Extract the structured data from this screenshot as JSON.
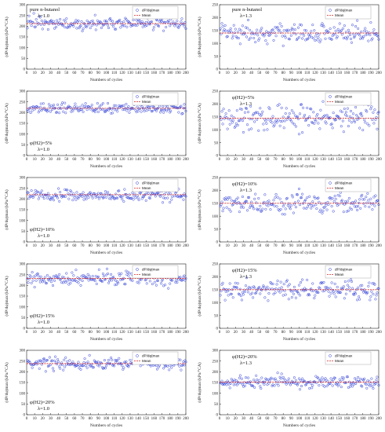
{
  "chart_data": [
    {
      "type": "scatter",
      "condition_lines": [
        "pure n-butanol",
        "λ=1.0"
      ],
      "xlabel": "Numbers of cycles",
      "ylabel": "(dP/dφ)max/(kPa/°CA)",
      "xlim": [
        0,
        200
      ],
      "ylim": [
        0,
        300
      ],
      "xticks": [
        0,
        10,
        20,
        30,
        40,
        50,
        60,
        70,
        80,
        90,
        100,
        110,
        120,
        130,
        140,
        150,
        160,
        170,
        180,
        190,
        200
      ],
      "yticks": [
        0,
        50,
        100,
        150,
        200,
        250,
        300
      ],
      "legend": [
        "dP/dφ|max",
        "Mean"
      ],
      "mean": 212,
      "spread": 22,
      "seed": 11
    },
    {
      "type": "scatter",
      "condition_lines": [
        "pure n-butanol",
        "λ=1.3"
      ],
      "xlabel": "Numbers of cycles",
      "ylabel": "(dP/dφ)max/(kPa/°CA)",
      "xlim": [
        0,
        200
      ],
      "ylim": [
        0,
        250
      ],
      "xticks": [
        0,
        10,
        20,
        30,
        40,
        50,
        60,
        70,
        80,
        90,
        100,
        110,
        120,
        130,
        140,
        150,
        160,
        170,
        180,
        190,
        200
      ],
      "yticks": [
        0,
        50,
        100,
        150,
        200,
        250
      ],
      "legend": [
        "dP/dφ|max",
        "Mean"
      ],
      "mean": 140,
      "spread": 28,
      "seed": 12
    },
    {
      "type": "scatter",
      "condition_lines": [
        "φ(H2)=5%",
        "λ=1.0"
      ],
      "xlabel": "Numbers of cycles",
      "ylabel": "(dP/dφ)max/(kPa/°CA)",
      "xlim": [
        0,
        200
      ],
      "ylim": [
        0,
        300
      ],
      "xticks": [
        0,
        10,
        20,
        30,
        40,
        50,
        60,
        70,
        80,
        90,
        100,
        110,
        120,
        130,
        140,
        150,
        160,
        170,
        180,
        190,
        200
      ],
      "yticks": [
        0,
        50,
        100,
        150,
        200,
        250,
        300
      ],
      "legend": [
        "dP/dφ|max",
        "Mean"
      ],
      "mean": 220,
      "spread": 18,
      "seed": 13
    },
    {
      "type": "scatter",
      "condition_lines": [
        "φ(H2)=5%",
        "λ=1.3"
      ],
      "xlabel": "Numbers of cycles",
      "ylabel": "(dP/dφ)max/(kPa/°CA)",
      "xlim": [
        0,
        200
      ],
      "ylim": [
        0,
        250
      ],
      "xticks": [
        0,
        10,
        20,
        30,
        40,
        50,
        60,
        70,
        80,
        90,
        100,
        110,
        120,
        130,
        140,
        150,
        160,
        170,
        180,
        190,
        200
      ],
      "yticks": [
        0,
        50,
        100,
        150,
        200,
        250
      ],
      "legend": [
        "dP/dφ|max",
        "Mean"
      ],
      "mean": 145,
      "spread": 35,
      "seed": 14
    },
    {
      "type": "scatter",
      "condition_lines": [
        "φ(H2)=10%",
        "λ=1.0"
      ],
      "xlabel": "Numbers of cycles",
      "ylabel": "(dP/dφ)max/(kPa/°CA)",
      "xlim": [
        0,
        200
      ],
      "ylim": [
        0,
        300
      ],
      "xticks": [
        0,
        10,
        20,
        30,
        40,
        50,
        60,
        70,
        80,
        90,
        100,
        110,
        120,
        130,
        140,
        150,
        160,
        170,
        180,
        190,
        200
      ],
      "yticks": [
        0,
        50,
        100,
        150,
        200,
        250,
        300
      ],
      "legend": [
        "dP/dφ|max",
        "Mean"
      ],
      "mean": 220,
      "spread": 22,
      "seed": 15
    },
    {
      "type": "scatter",
      "condition_lines": [
        "φ(H2)=10%",
        "λ=1.3"
      ],
      "xlabel": "Numbers of cycles",
      "ylabel": "(dP/dφ)max/(kPa/°CA)",
      "xlim": [
        0,
        200
      ],
      "ylim": [
        0,
        250
      ],
      "xticks": [
        0,
        10,
        20,
        30,
        40,
        50,
        60,
        70,
        80,
        90,
        100,
        110,
        120,
        130,
        140,
        150,
        160,
        170,
        180,
        190,
        200
      ],
      "yticks": [
        0,
        50,
        100,
        150,
        200,
        250
      ],
      "legend": [
        "dP/dφ|max",
        "Mean"
      ],
      "mean": 150,
      "spread": 30,
      "seed": 16
    },
    {
      "type": "scatter",
      "condition_lines": [
        "φ(H2)=15%",
        "λ=1.0"
      ],
      "xlabel": "Numbers of cycles",
      "ylabel": "(dP/dφ)max/(kPa/°CA)",
      "xlim": [
        0,
        200
      ],
      "ylim": [
        0,
        300
      ],
      "xticks": [
        0,
        10,
        20,
        30,
        40,
        50,
        60,
        70,
        80,
        90,
        100,
        110,
        120,
        130,
        140,
        150,
        160,
        170,
        180,
        190,
        200
      ],
      "yticks": [
        0,
        50,
        100,
        150,
        200,
        250,
        300
      ],
      "legend": [
        "dP/dφ|max",
        "Mean"
      ],
      "mean": 232,
      "spread": 24,
      "seed": 17
    },
    {
      "type": "scatter",
      "condition_lines": [
        "φ(H2)=15%",
        "λ=1.3"
      ],
      "xlabel": "Numbers of cycles",
      "ylabel": "(dP/dφ)max/(kPa/°CA)",
      "xlim": [
        0,
        200
      ],
      "ylim": [
        0,
        250
      ],
      "xticks": [
        0,
        10,
        20,
        30,
        40,
        50,
        60,
        70,
        80,
        90,
        100,
        110,
        120,
        130,
        140,
        150,
        160,
        170,
        180,
        190,
        200
      ],
      "yticks": [
        0,
        50,
        100,
        150,
        200,
        250
      ],
      "legend": [
        "dP/dφ|max",
        "Mean"
      ],
      "mean": 150,
      "spread": 25,
      "seed": 18
    },
    {
      "type": "scatter",
      "condition_lines": [
        "φ(H2)=20%",
        "λ=1.0"
      ],
      "xlabel": "Numbers of cycles",
      "ylabel": "(dP/dφ)max/(kPa/°CA)",
      "xlim": [
        0,
        200
      ],
      "ylim": [
        0,
        300
      ],
      "xticks": [
        0,
        10,
        20,
        30,
        40,
        50,
        60,
        70,
        80,
        90,
        100,
        110,
        120,
        130,
        140,
        150,
        160,
        170,
        180,
        190,
        200
      ],
      "yticks": [
        0,
        50,
        100,
        150,
        200,
        250,
        300
      ],
      "legend": [
        "dP/dφ|max",
        "Mean"
      ],
      "mean": 238,
      "spread": 22,
      "seed": 19
    },
    {
      "type": "scatter",
      "condition_lines": [
        "φ(H2)=20%",
        "λ=1.3"
      ],
      "xlabel": "Numbers of cycles",
      "ylabel": "(dP/dφ)max/(kPa/°CA)",
      "xlim": [
        0,
        200
      ],
      "ylim": [
        0,
        300
      ],
      "xticks": [
        0,
        10,
        20,
        30,
        40,
        50,
        60,
        70,
        80,
        90,
        100,
        110,
        120,
        130,
        140,
        150,
        160,
        170,
        180,
        190,
        200
      ],
      "yticks": [
        0,
        50,
        100,
        150,
        200,
        250,
        300
      ],
      "legend": [
        "dP/dφ|max",
        "Mean"
      ],
      "mean": 152,
      "spread": 22,
      "seed": 20
    }
  ],
  "colors": {
    "points": "#2f3fd6",
    "mean": "#d42a2a",
    "axis": "#222222"
  }
}
